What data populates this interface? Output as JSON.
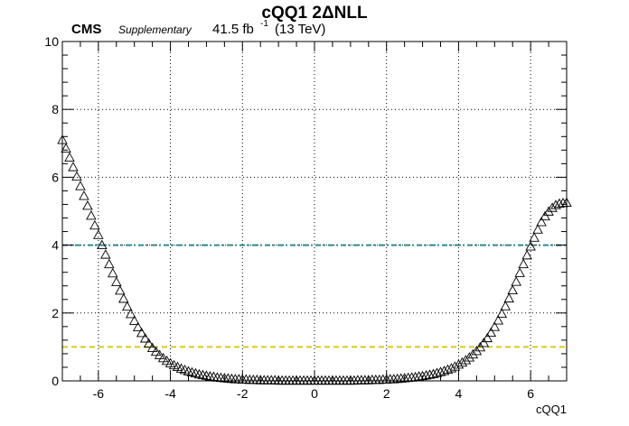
{
  "header": {
    "title": "cQQ1 2ΔNLL",
    "experiment": "CMS",
    "tag": "Supplementary",
    "lumi_value": "41.5 fb",
    "lumi_exp": "-1",
    "energy": "(13 TeV)"
  },
  "chart_data": {
    "type": "scatter",
    "title": "cQQ1 2ΔNLL",
    "xlabel": "cQQ1",
    "ylabel": "",
    "xlim": [
      -7,
      7
    ],
    "ylim": [
      0,
      10
    ],
    "x_ticks": [
      -6,
      -4,
      -2,
      0,
      2,
      4,
      6
    ],
    "y_ticks": [
      0,
      2,
      4,
      6,
      8,
      10
    ],
    "grid": true,
    "marker": "open-triangle",
    "reference_lines": [
      {
        "y": 4,
        "color": "#2a8c8c",
        "style": "dash-dot"
      },
      {
        "y": 1,
        "color": "#d6cc1c",
        "style": "dashed"
      }
    ],
    "series": [
      {
        "x": [
          -7.0,
          -6.9,
          -6.8,
          -6.7,
          -6.6,
          -6.5,
          -6.4,
          -6.3,
          -6.2,
          -6.1,
          -6.0,
          -5.9,
          -5.8,
          -5.7,
          -5.6,
          -5.5,
          -5.4,
          -5.3,
          -5.2,
          -5.1,
          -5.0,
          -4.9,
          -4.8,
          -4.7,
          -4.6,
          -4.5,
          -4.4,
          -4.3,
          -4.2,
          -4.1,
          -4.0,
          -3.9,
          -3.8,
          -3.7,
          -3.6,
          -3.5,
          -3.4,
          -3.3,
          -3.2,
          -3.1,
          -3.0,
          -2.9,
          -2.8,
          -2.7,
          -2.6,
          -2.5,
          -2.4,
          -2.3,
          -2.2,
          -2.1,
          -2.0,
          -1.9,
          -1.8,
          -1.7,
          -1.6,
          -1.5,
          -1.4,
          -1.3,
          -1.2,
          -1.1,
          -1.0,
          -0.9,
          -0.8,
          -0.7,
          -0.6,
          -0.5,
          -0.4,
          -0.3,
          -0.2,
          -0.1,
          0.0,
          0.1,
          0.2,
          0.3,
          0.4,
          0.5,
          0.6,
          0.7,
          0.8,
          0.9,
          1.0,
          1.1,
          1.2,
          1.3,
          1.4,
          1.5,
          1.6,
          1.7,
          1.8,
          1.9,
          2.0,
          2.1,
          2.2,
          2.3,
          2.4,
          2.5,
          2.6,
          2.7,
          2.8,
          2.9,
          3.0,
          3.1,
          3.2,
          3.3,
          3.4,
          3.5,
          3.6,
          3.7,
          3.8,
          3.9,
          4.0,
          4.1,
          4.2,
          4.3,
          4.4,
          4.5,
          4.6,
          4.7,
          4.8,
          4.9,
          5.0,
          5.1,
          5.2,
          5.3,
          5.4,
          5.5,
          5.6,
          5.7,
          5.8,
          5.9,
          6.0,
          6.1,
          6.2,
          6.3,
          6.4,
          6.5,
          6.6,
          6.7,
          6.8,
          6.9,
          7.0
        ],
        "y": [
          7.1,
          6.85,
          6.58,
          6.3,
          6.02,
          5.74,
          5.45,
          5.16,
          4.87,
          4.58,
          4.3,
          4.0,
          3.72,
          3.44,
          3.17,
          2.91,
          2.66,
          2.42,
          2.19,
          1.97,
          1.77,
          1.58,
          1.41,
          1.25,
          1.1,
          0.97,
          0.86,
          0.76,
          0.67,
          0.59,
          0.52,
          0.46,
          0.41,
          0.36,
          0.32,
          0.28,
          0.25,
          0.22,
          0.19,
          0.17,
          0.15,
          0.13,
          0.12,
          0.1,
          0.09,
          0.08,
          0.07,
          0.06,
          0.05,
          0.05,
          0.04,
          0.04,
          0.03,
          0.03,
          0.03,
          0.02,
          0.02,
          0.02,
          0.02,
          0.02,
          0.01,
          0.01,
          0.01,
          0.01,
          0.01,
          0.01,
          0.01,
          0.01,
          0.01,
          0.01,
          0.01,
          0.01,
          0.01,
          0.01,
          0.01,
          0.01,
          0.01,
          0.01,
          0.01,
          0.01,
          0.01,
          0.01,
          0.02,
          0.02,
          0.02,
          0.02,
          0.03,
          0.03,
          0.03,
          0.04,
          0.04,
          0.05,
          0.05,
          0.06,
          0.07,
          0.08,
          0.09,
          0.1,
          0.11,
          0.13,
          0.14,
          0.16,
          0.18,
          0.2,
          0.23,
          0.26,
          0.29,
          0.33,
          0.37,
          0.42,
          0.48,
          0.54,
          0.61,
          0.69,
          0.78,
          0.88,
          0.99,
          1.12,
          1.26,
          1.42,
          1.59,
          1.78,
          1.98,
          2.2,
          2.43,
          2.67,
          2.92,
          3.18,
          3.44,
          3.7,
          3.96,
          4.22,
          4.46,
          4.68,
          4.85,
          4.99,
          5.1,
          5.18,
          5.22,
          5.24,
          5.25
        ]
      }
    ]
  }
}
